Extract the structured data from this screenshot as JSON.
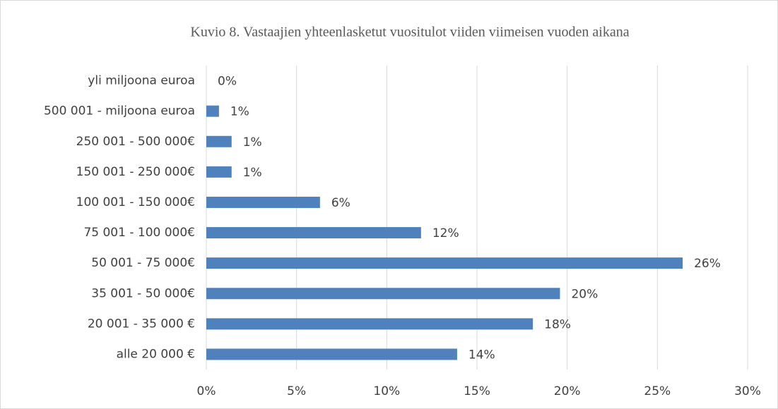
{
  "chart_data": {
    "type": "bar",
    "orientation": "horizontal",
    "title": "Kuvio 8. Vastaajien yhteenlasketut vuositulot viiden viimeisen vuoden aikana",
    "categories": [
      "yli miljoona euroa",
      "500 001 - miljoona euroa",
      "250 001 - 500 000€",
      "150 001 - 250 000€",
      "100 001 - 150 000€",
      "75 001 - 100 000€",
      "50 001 - 75 000€",
      "35 001 - 50 000€",
      "20 001 - 35 000 €",
      "alle 20 000 €"
    ],
    "values": [
      0,
      0.7,
      1.4,
      1.4,
      6.3,
      11.9,
      26.4,
      19.6,
      18.1,
      13.9
    ],
    "value_labels": [
      "0%",
      "1%",
      "1%",
      "1%",
      "6%",
      "12%",
      "26%",
      "20%",
      "18%",
      "14%"
    ],
    "color": "#4f81bd",
    "xlim": [
      0,
      30
    ],
    "xticks": [
      {
        "value": 0,
        "label": "0%"
      },
      {
        "value": 5,
        "label": "5%"
      },
      {
        "value": 10,
        "label": "10%"
      },
      {
        "value": 15,
        "label": "15%"
      },
      {
        "value": 20,
        "label": "20%"
      },
      {
        "value": 25,
        "label": "25%"
      },
      {
        "value": 30,
        "label": "30%"
      }
    ],
    "grid": true
  }
}
